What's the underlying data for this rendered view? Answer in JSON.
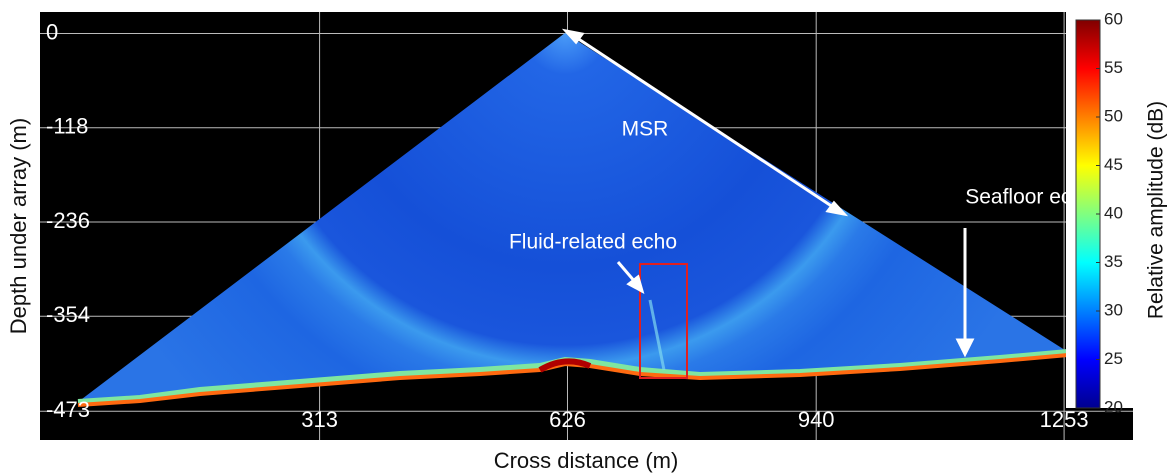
{
  "chart_data": {
    "type": "sonar-fan",
    "xlabel": "Cross distance (m)",
    "ylabel": "Depth under array (m)",
    "xlim": [
      -40,
      1340
    ],
    "ylim": [
      -509,
      27
    ],
    "xticks": [
      313,
      626,
      940,
      1253
    ],
    "yticks": [
      0,
      -118,
      -236,
      -354,
      -473
    ],
    "grid": true,
    "annotations": [
      "MSR",
      "Seafloor echo",
      "Fluid-related echo"
    ],
    "colorbar": {
      "label": "Relative amplitude (dB)",
      "lim": [
        20,
        60
      ],
      "ticks": [
        20,
        25,
        30,
        35,
        40,
        45,
        50,
        55,
        60
      ],
      "colors": [
        "#00008f",
        "#0000ff",
        "#0080ff",
        "#00ffff",
        "#80ff80",
        "#ffff00",
        "#ff8000",
        "#ff0000",
        "#800000"
      ]
    }
  }
}
